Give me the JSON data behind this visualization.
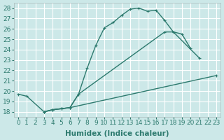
{
  "xlabel": "Humidex (Indice chaleur)",
  "background_color": "#cce8e8",
  "grid_color": "#ffffff",
  "line_color": "#2d7a6e",
  "xlim": [
    -0.5,
    23.5
  ],
  "ylim": [
    17.5,
    28.5
  ],
  "xticks": [
    0,
    1,
    2,
    3,
    4,
    5,
    6,
    7,
    8,
    9,
    10,
    11,
    12,
    13,
    14,
    15,
    16,
    17,
    18,
    19,
    20,
    21,
    22,
    23
  ],
  "yticks": [
    18,
    19,
    20,
    21,
    22,
    23,
    24,
    25,
    26,
    27,
    28
  ],
  "curve1_x": [
    0,
    1,
    3,
    4,
    5,
    6,
    7,
    8,
    9,
    10,
    11,
    12,
    13,
    14,
    15,
    16,
    17,
    18,
    19,
    20
  ],
  "curve1_y": [
    19.7,
    19.5,
    18.0,
    18.2,
    18.3,
    18.4,
    19.7,
    22.2,
    24.4,
    26.1,
    26.6,
    27.3,
    27.9,
    28.0,
    27.7,
    27.8,
    26.8,
    25.7,
    25.5,
    24.1
  ],
  "curve2_x": [
    3,
    4,
    5,
    6,
    7,
    17,
    18,
    21
  ],
  "curve2_y": [
    18.0,
    18.2,
    18.3,
    18.4,
    19.7,
    25.7,
    25.7,
    23.2
  ],
  "curve3_x": [
    3,
    4,
    5,
    6,
    23
  ],
  "curve3_y": [
    18.0,
    18.2,
    18.3,
    18.4,
    21.5
  ],
  "font_size_ticks": 6.5,
  "font_size_xlabel": 7.5
}
